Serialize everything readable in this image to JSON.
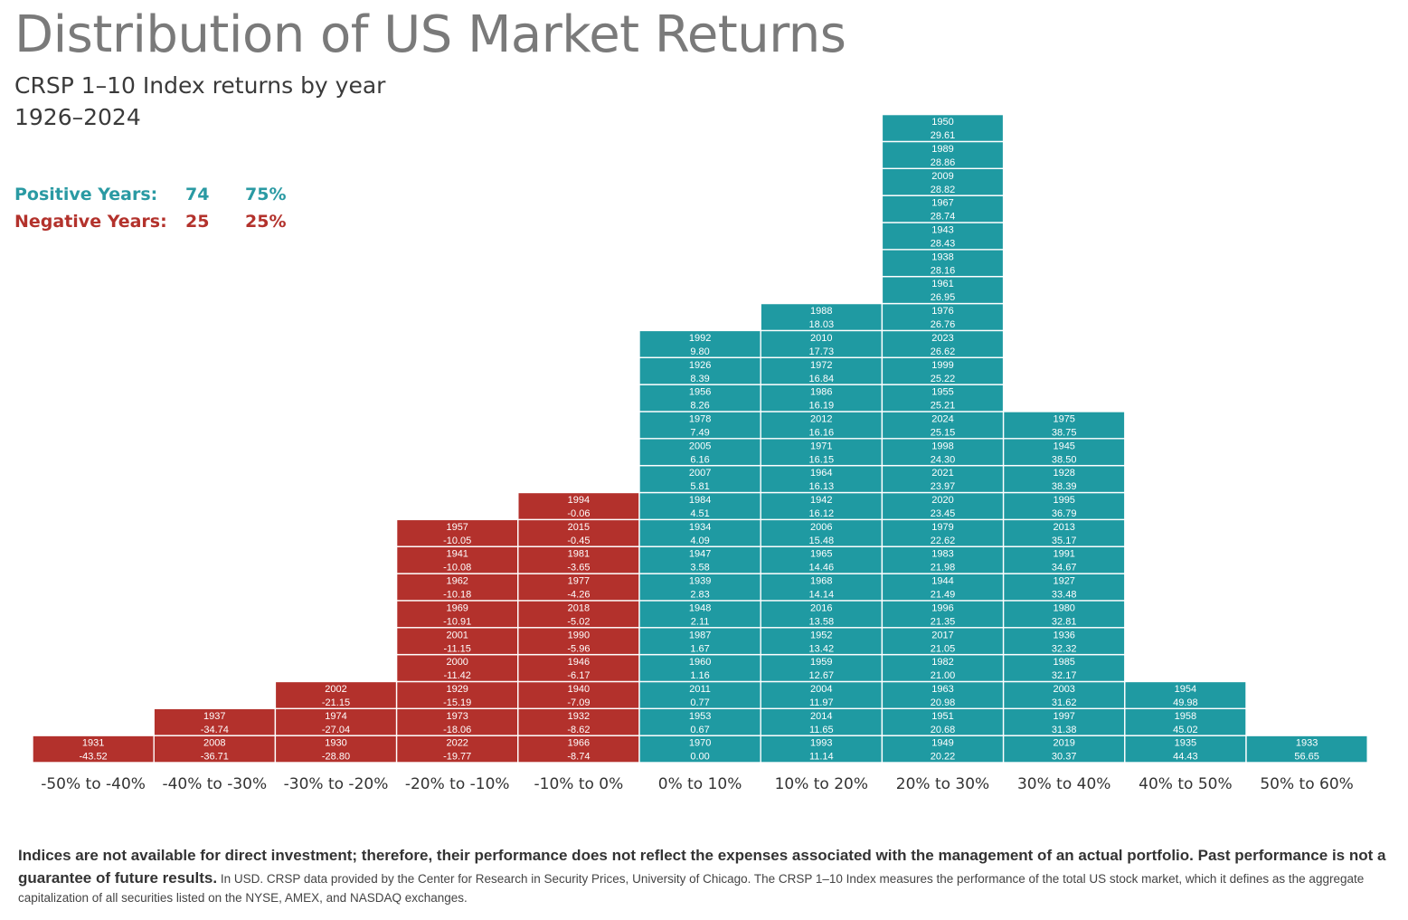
{
  "title": "Distribution of US Market Returns",
  "subtitle": "CRSP 1–10 Index returns by year",
  "period": "1926–2024",
  "stats": {
    "positive": {
      "label": "Positive Years:",
      "count": "74",
      "percent": "75%",
      "color": "#2a9aa3"
    },
    "negative": {
      "label": "Negative Years:",
      "count": "25",
      "percent": "25%",
      "color": "#b3322c"
    }
  },
  "colors": {
    "positive": "#1f9aa2",
    "negative": "#b3312c",
    "cell_text": "#ffffff",
    "axis_text": "#333333"
  },
  "chart_data": {
    "type": "histogram",
    "title": "Distribution of US Market Returns",
    "xlabel": "",
    "ylabel": "",
    "categories": [
      "-50% to -40%",
      "-40% to -30%",
      "-30% to -20%",
      "-20% to -10%",
      "-10% to 0%",
      "0% to 10%",
      "10% to 20%",
      "20% to 30%",
      "30% to 40%",
      "40% to 50%",
      "50% to 60%"
    ],
    "bins": [
      {
        "range": "-50% to -40%",
        "sign": "negative",
        "entries": [
          {
            "year": "1931",
            "return": "-43.52"
          }
        ]
      },
      {
        "range": "-40% to -30%",
        "sign": "negative",
        "entries": [
          {
            "year": "2008",
            "return": "-36.71"
          },
          {
            "year": "1937",
            "return": "-34.74"
          }
        ]
      },
      {
        "range": "-30% to -20%",
        "sign": "negative",
        "entries": [
          {
            "year": "1930",
            "return": "-28.80"
          },
          {
            "year": "1974",
            "return": "-27.04"
          },
          {
            "year": "2002",
            "return": "-21.15"
          }
        ]
      },
      {
        "range": "-20% to -10%",
        "sign": "negative",
        "entries": [
          {
            "year": "2022",
            "return": "-19.77"
          },
          {
            "year": "1973",
            "return": "-18.06"
          },
          {
            "year": "1929",
            "return": "-15.19"
          },
          {
            "year": "2000",
            "return": "-11.42"
          },
          {
            "year": "2001",
            "return": "-11.15"
          },
          {
            "year": "1969",
            "return": "-10.91"
          },
          {
            "year": "1962",
            "return": "-10.18"
          },
          {
            "year": "1941",
            "return": "-10.08"
          },
          {
            "year": "1957",
            "return": "-10.05"
          }
        ]
      },
      {
        "range": "-10% to 0%",
        "sign": "negative",
        "entries": [
          {
            "year": "1966",
            "return": "-8.74"
          },
          {
            "year": "1932",
            "return": "-8.62"
          },
          {
            "year": "1940",
            "return": "-7.09"
          },
          {
            "year": "1946",
            "return": "-6.17"
          },
          {
            "year": "1990",
            "return": "-5.96"
          },
          {
            "year": "2018",
            "return": "-5.02"
          },
          {
            "year": "1977",
            "return": "-4.26"
          },
          {
            "year": "1981",
            "return": "-3.65"
          },
          {
            "year": "2015",
            "return": "-0.45"
          },
          {
            "year": "1994",
            "return": "-0.06"
          }
        ]
      },
      {
        "range": "0% to 10%",
        "sign": "positive",
        "entries": [
          {
            "year": "1970",
            "return": "0.00"
          },
          {
            "year": "1953",
            "return": "0.67"
          },
          {
            "year": "2011",
            "return": "0.77"
          },
          {
            "year": "1960",
            "return": "1.16"
          },
          {
            "year": "1987",
            "return": "1.67"
          },
          {
            "year": "1948",
            "return": "2.11"
          },
          {
            "year": "1939",
            "return": "2.83"
          },
          {
            "year": "1947",
            "return": "3.58"
          },
          {
            "year": "1934",
            "return": "4.09"
          },
          {
            "year": "1984",
            "return": "4.51"
          },
          {
            "year": "2007",
            "return": "5.81"
          },
          {
            "year": "2005",
            "return": "6.16"
          },
          {
            "year": "1978",
            "return": "7.49"
          },
          {
            "year": "1956",
            "return": "8.26"
          },
          {
            "year": "1926",
            "return": "8.39"
          },
          {
            "year": "1992",
            "return": "9.80"
          }
        ]
      },
      {
        "range": "10% to 20%",
        "sign": "positive",
        "entries": [
          {
            "year": "1993",
            "return": "11.14"
          },
          {
            "year": "2014",
            "return": "11.65"
          },
          {
            "year": "2004",
            "return": "11.97"
          },
          {
            "year": "1959",
            "return": "12.67"
          },
          {
            "year": "1952",
            "return": "13.42"
          },
          {
            "year": "2016",
            "return": "13.58"
          },
          {
            "year": "1968",
            "return": "14.14"
          },
          {
            "year": "1965",
            "return": "14.46"
          },
          {
            "year": "2006",
            "return": "15.48"
          },
          {
            "year": "1942",
            "return": "16.12"
          },
          {
            "year": "1964",
            "return": "16.13"
          },
          {
            "year": "1971",
            "return": "16.15"
          },
          {
            "year": "2012",
            "return": "16.16"
          },
          {
            "year": "1986",
            "return": "16.19"
          },
          {
            "year": "1972",
            "return": "16.84"
          },
          {
            "year": "2010",
            "return": "17.73"
          },
          {
            "year": "1988",
            "return": "18.03"
          }
        ]
      },
      {
        "range": "20% to 30%",
        "sign": "positive",
        "entries": [
          {
            "year": "1949",
            "return": "20.22"
          },
          {
            "year": "1951",
            "return": "20.68"
          },
          {
            "year": "1963",
            "return": "20.98"
          },
          {
            "year": "1982",
            "return": "21.00"
          },
          {
            "year": "2017",
            "return": "21.05"
          },
          {
            "year": "1996",
            "return": "21.35"
          },
          {
            "year": "1944",
            "return": "21.49"
          },
          {
            "year": "1983",
            "return": "21.98"
          },
          {
            "year": "1979",
            "return": "22.62"
          },
          {
            "year": "2020",
            "return": "23.45"
          },
          {
            "year": "2021",
            "return": "23.97"
          },
          {
            "year": "1998",
            "return": "24.30"
          },
          {
            "year": "2024",
            "return": "25.15"
          },
          {
            "year": "1955",
            "return": "25.21"
          },
          {
            "year": "1999",
            "return": "25.22"
          },
          {
            "year": "2023",
            "return": "26.62"
          },
          {
            "year": "1976",
            "return": "26.76"
          },
          {
            "year": "1961",
            "return": "26.95"
          },
          {
            "year": "1938",
            "return": "28.16"
          },
          {
            "year": "1943",
            "return": "28.43"
          },
          {
            "year": "1967",
            "return": "28.74"
          },
          {
            "year": "2009",
            "return": "28.82"
          },
          {
            "year": "1989",
            "return": "28.86"
          },
          {
            "year": "1950",
            "return": "29.61"
          }
        ]
      },
      {
        "range": "30% to 40%",
        "sign": "positive",
        "entries": [
          {
            "year": "2019",
            "return": "30.37"
          },
          {
            "year": "1997",
            "return": "31.38"
          },
          {
            "year": "2003",
            "return": "31.62"
          },
          {
            "year": "1985",
            "return": "32.17"
          },
          {
            "year": "1936",
            "return": "32.32"
          },
          {
            "year": "1980",
            "return": "32.81"
          },
          {
            "year": "1927",
            "return": "33.48"
          },
          {
            "year": "1991",
            "return": "34.67"
          },
          {
            "year": "2013",
            "return": "35.17"
          },
          {
            "year": "1995",
            "return": "36.79"
          },
          {
            "year": "1928",
            "return": "38.39"
          },
          {
            "year": "1945",
            "return": "38.50"
          },
          {
            "year": "1975",
            "return": "38.75"
          }
        ]
      },
      {
        "range": "40% to 50%",
        "sign": "positive",
        "entries": [
          {
            "year": "1935",
            "return": "44.43"
          },
          {
            "year": "1958",
            "return": "45.02"
          },
          {
            "year": "1954",
            "return": "49.98"
          }
        ]
      },
      {
        "range": "50% to 60%",
        "sign": "positive",
        "entries": [
          {
            "year": "1933",
            "return": "56.65"
          }
        ]
      }
    ]
  },
  "footer": {
    "bold": "Indices are not available for direct investment; therefore, their performance does not reflect the expenses associated with the management of an actual portfolio. Past performance is not a guarantee of future results.",
    "text": " In USD. CRSP data provided by the Center for Research in Security Prices, University of Chicago. The CRSP 1–10 Index measures the performance of the total US stock market, which it defines as the aggregate capitalization of all securities listed on the NYSE, AMEX, and NASDAQ exchanges."
  }
}
